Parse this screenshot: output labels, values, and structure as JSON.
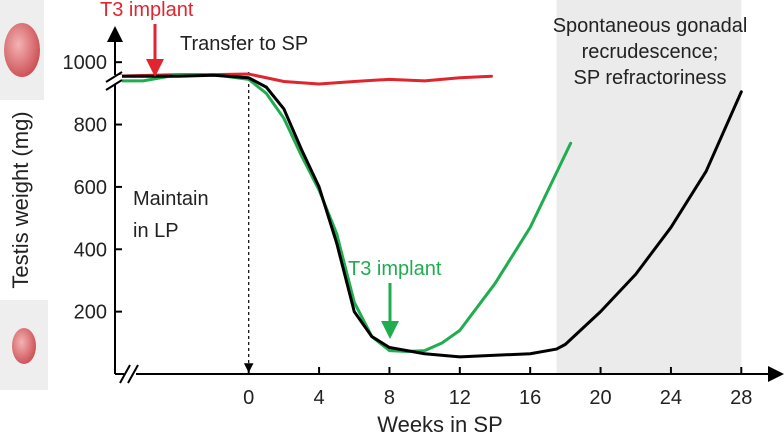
{
  "chart_data": {
    "type": "line",
    "x_label": "Weeks in SP",
    "y_label": "Testis weight (mg)",
    "xlim": [
      -7.6,
      30.2
    ],
    "ylim": [
      0,
      1100
    ],
    "xticks": [
      0,
      4,
      8,
      12,
      16,
      20,
      24,
      28
    ],
    "yticks": [
      200,
      400,
      600,
      800,
      1000
    ],
    "grid": false,
    "vline": 0,
    "shaded_span": [
      17.5,
      28
    ],
    "shade_color": "#ebebeb",
    "series": [
      {
        "color": "#e0252f",
        "x": [
          -7.6,
          -4,
          -2,
          0,
          1,
          2,
          4,
          6,
          8,
          10,
          12,
          13.8
        ],
        "values": [
          955,
          960,
          960,
          962,
          950,
          938,
          930,
          938,
          945,
          940,
          950,
          955
        ]
      },
      {
        "color": "#1fad4f",
        "x": [
          -7.6,
          -6,
          -4,
          -2,
          0,
          1,
          2,
          3,
          4,
          5,
          6,
          7,
          8,
          9,
          10,
          11,
          12,
          14,
          16,
          18.3
        ],
        "values": [
          940,
          940,
          960,
          960,
          945,
          900,
          820,
          700,
          590,
          450,
          230,
          120,
          75,
          72,
          75,
          100,
          140,
          290,
          470,
          740
        ]
      },
      {
        "color": "#000000",
        "x": [
          -7.6,
          -4,
          -2,
          0,
          1,
          2,
          3,
          4,
          5,
          6,
          7,
          8,
          10,
          12,
          14,
          16,
          17.5,
          18,
          20,
          22,
          24,
          26,
          28
        ],
        "values": [
          955,
          955,
          958,
          950,
          920,
          850,
          720,
          600,
          420,
          200,
          120,
          85,
          65,
          55,
          60,
          65,
          80,
          95,
          200,
          320,
          470,
          650,
          905
        ]
      }
    ],
    "annotations": {
      "red_implant": "T3 implant",
      "transfer": "Transfer to SP",
      "maintain": [
        "Maintain",
        "in LP"
      ],
      "green_implant": "T3 implant",
      "recrudescence": [
        "Spontaneous gonadal",
        "recrudescence;",
        "SP refractoriness"
      ]
    }
  }
}
